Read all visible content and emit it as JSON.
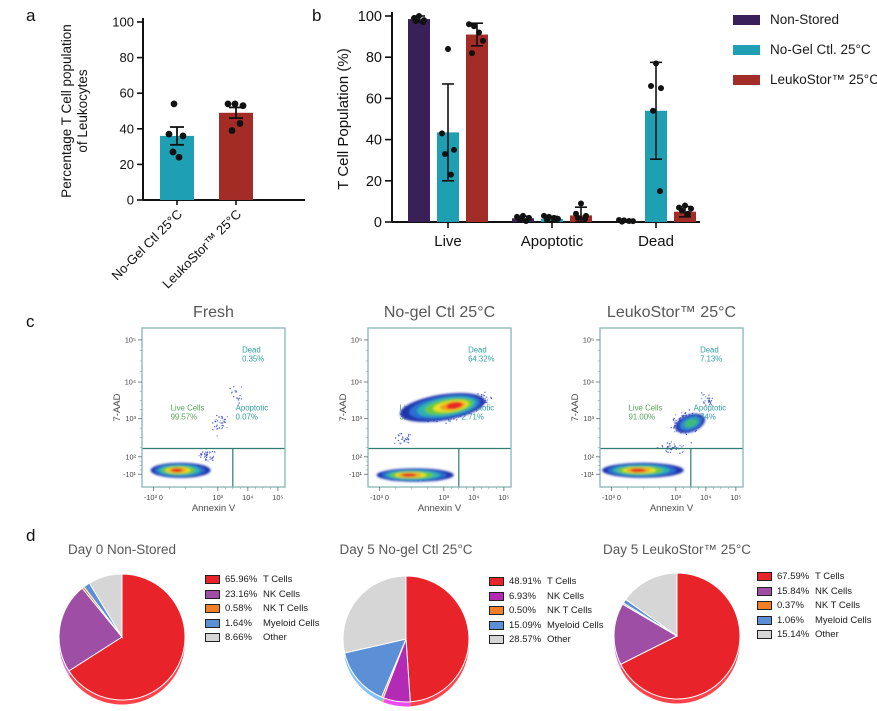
{
  "figure": {
    "panel_labels": {
      "a": "a",
      "b": "b",
      "c": "c",
      "d": "d"
    }
  },
  "chart_data": [
    {
      "id": "panel_a",
      "type": "bar",
      "ylabel_lines": [
        "Percentage T Cell population",
        "of Leukocytes"
      ],
      "ylim": [
        0,
        100
      ],
      "yticks": [
        0,
        20,
        40,
        60,
        80,
        100
      ],
      "categories": [
        "No-Gel Ctl 25°C",
        "LeukoStor™ 25°C"
      ],
      "values": [
        36,
        49
      ],
      "errors": [
        5,
        3
      ],
      "points": [
        [
          54,
          37,
          36,
          27,
          24
        ],
        [
          54,
          54,
          53,
          43,
          39
        ]
      ],
      "bar_colors": [
        "#1f9fb4",
        "#a32c26"
      ]
    },
    {
      "id": "panel_b",
      "type": "grouped_bar",
      "ylabel": "T Cell Population (%)",
      "ylim": [
        0,
        100
      ],
      "yticks": [
        0,
        20,
        40,
        60,
        80,
        100
      ],
      "categories": [
        "Live",
        "Apoptotic",
        "Dead"
      ],
      "legend_position": "top-right",
      "series": [
        {
          "name": "Non-Stored",
          "color": "#3a2059",
          "values": [
            98.5,
            1.8,
            0.4
          ],
          "errors": [
            1.5,
            1.0,
            0.4
          ],
          "points": [
            [
              100,
              99,
              98,
              97.5,
              97
            ],
            [
              3,
              2.5,
              2,
              1,
              0.5
            ],
            [
              1,
              0.8,
              0.5,
              0.4,
              0.2
            ]
          ]
        },
        {
          "name": "No-Gel Ctl. 25°C",
          "color": "#1f9fb4",
          "values": [
            43.5,
            1.5,
            54
          ],
          "errors": [
            23.5,
            1.2,
            23.5
          ],
          "points": [
            [
              84,
              43,
              35,
              33,
              23
            ],
            [
              3,
              2.5,
              2,
              1.5,
              1
            ],
            [
              77,
              66,
              65,
              54,
              15
            ]
          ]
        },
        {
          "name": "LeukoStor™ 25°C",
          "color": "#a32c26",
          "values": [
            91,
            3.2,
            5
          ],
          "errors": [
            5.5,
            4.0,
            2.5
          ],
          "points": [
            [
              96,
              95,
              92,
              88,
              82
            ],
            [
              9,
              4,
              3,
              2,
              1.5
            ],
            [
              8,
              7,
              6.5,
              5.5,
              4
            ]
          ]
        }
      ]
    },
    {
      "id": "panel_c",
      "type": "flow_cytometry",
      "plots": [
        {
          "title": "Fresh",
          "xlabel": "Annexin V",
          "ylabel": "7-AAD",
          "yticks": [
            "10⁵",
            "10⁴",
            "10³",
            "10²",
            "-10¹"
          ],
          "xticks": [
            "-10³ 0",
            "10³",
            "10⁴",
            "10⁵"
          ],
          "regions": {
            "dead": {
              "label": "Dead",
              "value": "0.35%"
            },
            "live": {
              "label": "Live Cells",
              "value": "99.57%"
            },
            "apoptotic": {
              "label": "Apoptotic",
              "value": "0.07%"
            }
          }
        },
        {
          "title": "No-gel Ctl 25°C",
          "xlabel": "Annexin V",
          "ylabel": "7-AAD",
          "yticks": [
            "10⁵",
            "10⁴",
            "10³",
            "10²",
            "-10¹"
          ],
          "xticks": [
            "-10³ 0",
            "10³",
            "10⁴",
            "10⁵"
          ],
          "regions": {
            "dead": {
              "label": "Dead",
              "value": "64.32%"
            },
            "live": {
              "label": "Live Cells",
              "value": "32.97%"
            },
            "apoptotic": {
              "label": "Apoptotic",
              "value": "2.71%"
            }
          }
        },
        {
          "title": "LeukoStor™ 25°C",
          "xlabel": "Annexin V",
          "ylabel": "7-AAD",
          "yticks": [
            "10⁵",
            "10⁴",
            "10³",
            "10²",
            "-10¹"
          ],
          "xticks": [
            "-10³ 0",
            "10³",
            "10⁴",
            "10⁵"
          ],
          "regions": {
            "dead": {
              "label": "Dead",
              "value": "7.13%"
            },
            "live": {
              "label": "Live Cells",
              "value": "91.00%"
            },
            "apoptotic": {
              "label": "Apoptotic",
              "value": "1.74%"
            }
          }
        }
      ]
    },
    {
      "id": "panel_d",
      "type": "pie",
      "pies": [
        {
          "title": "Day 0 Non-Stored",
          "slices": [
            {
              "label": "T Cells",
              "pct": "65.96%",
              "value": 65.96,
              "color": "#e8232a"
            },
            {
              "label": "NK Cells",
              "pct": "23.16%",
              "value": 23.16,
              "color": "#9e4fa5"
            },
            {
              "label": "NK T Cells",
              "pct": "0.58%",
              "value": 0.58,
              "color": "#f07f28"
            },
            {
              "label": "Myeloid Cells",
              "pct": "1.64%",
              "value": 1.64,
              "color": "#5b8fd6"
            },
            {
              "label": "Other",
              "pct": "8.66%",
              "value": 8.66,
              "color": "#d6d6d6"
            }
          ]
        },
        {
          "title": "Day 5 No-gel Ctl 25°C",
          "slices": [
            {
              "label": "T Cells",
              "pct": "48.91%",
              "value": 48.91,
              "color": "#e8232a"
            },
            {
              "label": "NK Cells",
              "pct": "6.93%",
              "value": 6.93,
              "color": "#b32ab5"
            },
            {
              "label": "NK T Cells",
              "pct": "0.50%",
              "value": 0.5,
              "color": "#f07f28"
            },
            {
              "label": "Myeloid Cells",
              "pct": "15.09%",
              "value": 15.09,
              "color": "#5b8fd6"
            },
            {
              "label": "Other",
              "pct": "28.57%",
              "value": 28.57,
              "color": "#d6d6d6"
            }
          ]
        },
        {
          "title": "Day 5 LeukoStor™ 25°C",
          "slices": [
            {
              "label": "T Cells",
              "pct": "67.59%",
              "value": 67.59,
              "color": "#e8232a"
            },
            {
              "label": "NK Cells",
              "pct": "15.84%",
              "value": 15.84,
              "color": "#9e4fa5"
            },
            {
              "label": "NK T Cells",
              "pct": "0.37%",
              "value": 0.37,
              "color": "#f07f28"
            },
            {
              "label": "Myeloid Cells",
              "pct": "1.06%",
              "value": 1.06,
              "color": "#5b8fd6"
            },
            {
              "label": "Other",
              "pct": "15.14%",
              "value": 15.14,
              "color": "#d6d6d6"
            }
          ]
        }
      ]
    }
  ]
}
